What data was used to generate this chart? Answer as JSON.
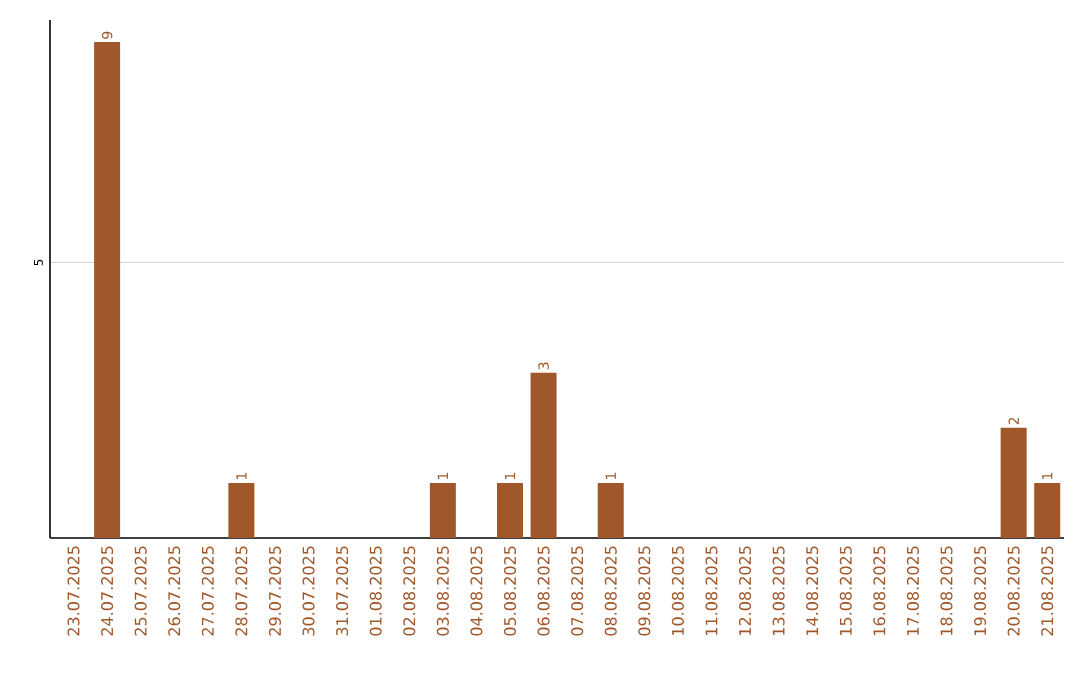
{
  "chart_data": {
    "type": "bar",
    "categories": [
      "23.07.2025",
      "24.07.2025",
      "25.07.2025",
      "26.07.2025",
      "27.07.2025",
      "28.07.2025",
      "29.07.2025",
      "30.07.2025",
      "31.07.2025",
      "01.08.2025",
      "02.08.2025",
      "03.08.2025",
      "04.08.2025",
      "05.08.2025",
      "06.08.2025",
      "07.08.2025",
      "08.08.2025",
      "09.08.2025",
      "10.08.2025",
      "11.08.2025",
      "12.08.2025",
      "13.08.2025",
      "14.08.2025",
      "15.08.2025",
      "16.08.2025",
      "17.08.2025",
      "18.08.2025",
      "19.08.2025",
      "20.08.2025",
      "21.08.2025"
    ],
    "values": [
      0,
      9,
      0,
      0,
      0,
      1,
      0,
      0,
      0,
      0,
      0,
      1,
      0,
      1,
      3,
      0,
      1,
      0,
      0,
      0,
      0,
      0,
      0,
      0,
      0,
      0,
      0,
      0,
      2,
      1
    ],
    "value_labels": [
      null,
      "9",
      null,
      null,
      null,
      "1",
      null,
      null,
      null,
      null,
      null,
      "1",
      null,
      "1",
      "3",
      null,
      "1",
      null,
      null,
      null,
      null,
      null,
      null,
      null,
      null,
      null,
      null,
      null,
      "2",
      "1"
    ],
    "color": "#a0572a",
    "ylim": [
      0,
      9.4
    ],
    "yticks": [
      5
    ],
    "grid": "y"
  }
}
